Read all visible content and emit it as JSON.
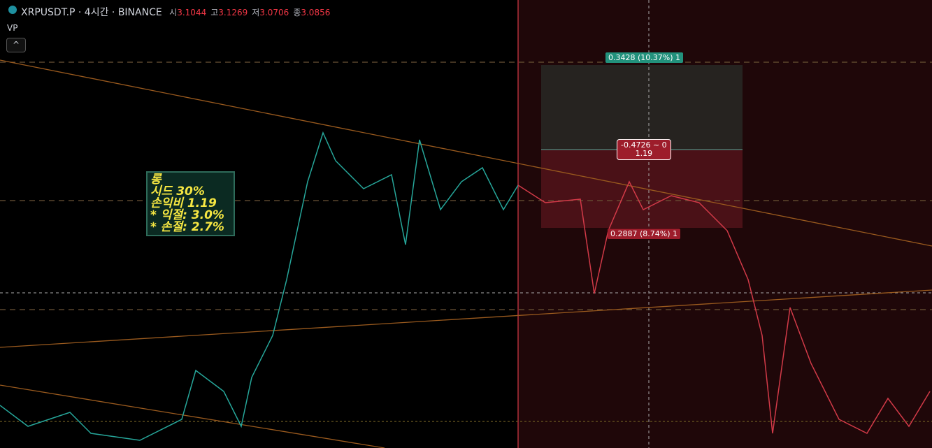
{
  "header": {
    "symbol": "XRPUSDT.P · 4시간 · BINANCE",
    "ohlc": [
      {
        "label": "시",
        "value": "3.1044"
      },
      {
        "label": "고",
        "value": "3.1269"
      },
      {
        "label": "저",
        "value": "3.0706"
      },
      {
        "label": "종",
        "value": "3.0856"
      }
    ],
    "indicator": "VP"
  },
  "note": {
    "lines": [
      "롱",
      "시드 30%",
      "손익비 1.19",
      "* 익절: 3.0%",
      "* 손절: 2.7%"
    ]
  },
  "position": {
    "target": "0.3428 (10.37%) 1",
    "center_line1": "-0.4726 ~ 0",
    "center_line2": "1.19",
    "stop": "0.2887 (8.74%) 1"
  }
}
